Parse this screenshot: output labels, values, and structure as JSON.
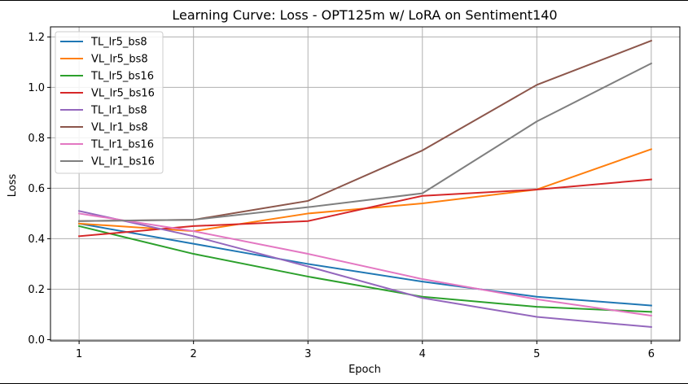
{
  "chart_data": {
    "type": "line",
    "title": "Learning Curve: Loss - OPT125m w/ LoRA on Sentiment140",
    "xlabel": "Epoch",
    "ylabel": "Loss",
    "xlim": [
      0.75,
      6.25
    ],
    "ylim": [
      -0.005,
      1.24
    ],
    "x": [
      1,
      2,
      3,
      4,
      5,
      6
    ],
    "x_ticks": [
      1,
      2,
      3,
      4,
      5,
      6
    ],
    "x_tick_labels": [
      "1",
      "2",
      "3",
      "4",
      "5",
      "6"
    ],
    "y_ticks": [
      0.0,
      0.2,
      0.4,
      0.6,
      0.8,
      1.0,
      1.2
    ],
    "y_tick_labels": [
      "0.0",
      "0.2",
      "0.4",
      "0.6",
      "0.8",
      "1.0",
      "1.2"
    ],
    "grid": true,
    "legend_position": "top-left",
    "series": [
      {
        "name": "TL_lr5_bs8",
        "color": "#1f77b4",
        "values": [
          0.46,
          0.38,
          0.3,
          0.23,
          0.17,
          0.135
        ]
      },
      {
        "name": "VL_lr5_bs8",
        "color": "#ff7f0e",
        "values": [
          0.46,
          0.43,
          0.5,
          0.54,
          0.595,
          0.755
        ]
      },
      {
        "name": "TL_lr5_bs16",
        "color": "#2ca02c",
        "values": [
          0.45,
          0.34,
          0.25,
          0.17,
          0.13,
          0.11
        ]
      },
      {
        "name": "VL_lr5_bs16",
        "color": "#d62728",
        "values": [
          0.41,
          0.45,
          0.47,
          0.57,
          0.595,
          0.635
        ]
      },
      {
        "name": "TL_lr1_bs8",
        "color": "#9467bd",
        "values": [
          0.51,
          0.41,
          0.29,
          0.165,
          0.09,
          0.05
        ]
      },
      {
        "name": "VL_lr1_bs8",
        "color": "#8c564b",
        "values": [
          0.47,
          0.475,
          0.55,
          0.75,
          1.01,
          1.185
        ]
      },
      {
        "name": "TL_lr1_bs16",
        "color": "#e377c2",
        "values": [
          0.5,
          0.43,
          0.34,
          0.24,
          0.16,
          0.095
        ]
      },
      {
        "name": "VL_lr1_bs16",
        "color": "#7f7f7f",
        "values": [
          0.47,
          0.475,
          0.525,
          0.58,
          0.865,
          1.095
        ]
      }
    ]
  }
}
